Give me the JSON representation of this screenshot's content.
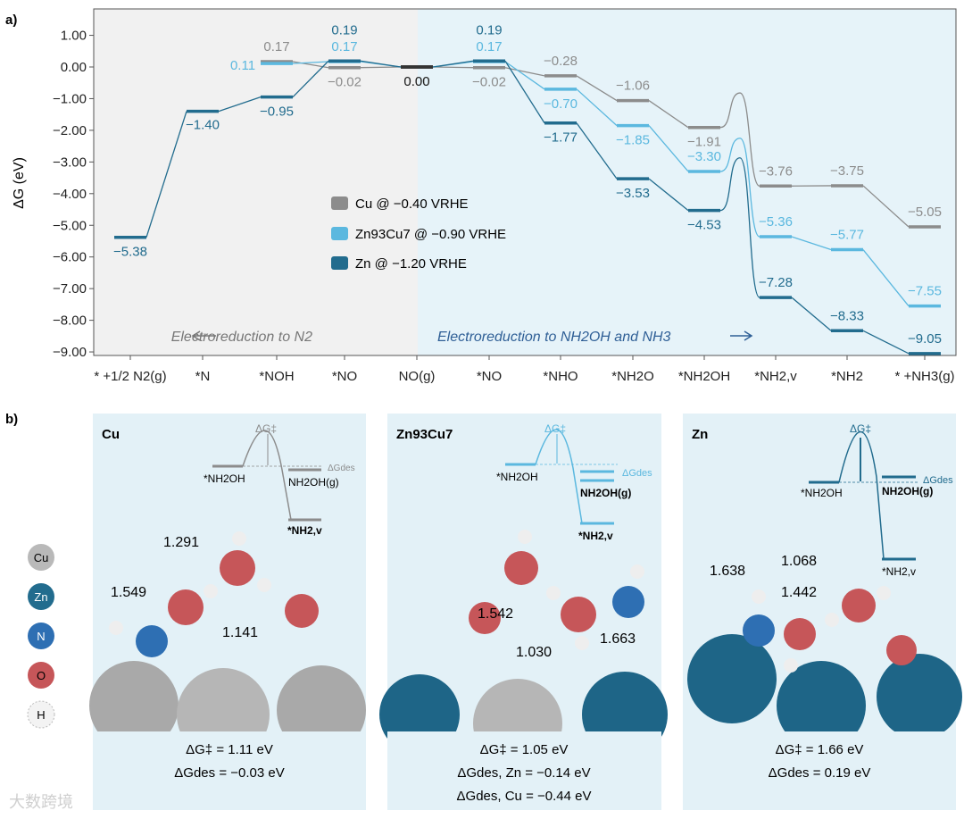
{
  "chart_data": {
    "type": "line",
    "panel_label": "a)",
    "ylabel": "ΔG (eV)",
    "ylim": [
      -9.2,
      1.55
    ],
    "yticks": [
      "1.00",
      "0.00",
      "-1.00",
      "-2.00",
      "-3.00",
      "-4.00",
      "-5.00",
      "-6.00",
      "-7.00",
      "-8.00",
      "-9.00"
    ],
    "ytick_values": [
      1,
      0,
      -1,
      -2,
      -3,
      -4,
      -5,
      -6,
      -7,
      -8,
      -9
    ],
    "categories": [
      "* +1/2 N2(g)",
      "*N",
      "*NOH",
      "*NO",
      "NO(g)",
      "*NO",
      "*NHO",
      "*NH2O",
      "*NH2OH",
      "*NH2,v",
      "*NH2",
      "* +NH3(g)"
    ],
    "region_left_label": "Electroreduction to N2",
    "region_right_label": "Electroreduction to NH2OH and NH3",
    "legend": [
      {
        "name": "Cu @ −0.40 VRHE",
        "color": "#8c8c8c"
      },
      {
        "name": "Zn93Cu7 @ −0.90 VRHE",
        "color": "#5bb8df"
      },
      {
        "name": "Zn @ −1.20 VRHE",
        "color": "#226c8e"
      }
    ],
    "series": [
      {
        "name": "Cu",
        "color": "#8c8c8c",
        "values": [
          null,
          null,
          0.17,
          -0.02,
          0.0,
          -0.02,
          -0.28,
          -1.06,
          -1.91,
          -3.76,
          -3.75,
          -5.05
        ],
        "labels": [
          "",
          "",
          "0.17",
          "−0.02",
          "0.00",
          "−0.02",
          "−0.28",
          "−1.06",
          "−1.91",
          "−3.76",
          "−3.75",
          "−5.05"
        ],
        "ts_peak": -0.82
      },
      {
        "name": "Zn93Cu7",
        "color": "#5bb8df",
        "values": [
          null,
          null,
          0.11,
          0.17,
          0.0,
          0.17,
          -0.7,
          -1.85,
          -3.3,
          -5.36,
          -5.77,
          -7.55
        ],
        "labels": [
          "",
          "",
          "0.11",
          "0.17",
          "",
          "0.17",
          "−0.70",
          "−1.85",
          "−3.30",
          "−5.36",
          "−5.77",
          "−7.55"
        ],
        "ts_peak": -2.25
      },
      {
        "name": "Zn",
        "color": "#226c8e",
        "values": [
          -5.38,
          -1.4,
          -0.95,
          0.19,
          0.0,
          0.19,
          -1.77,
          -3.53,
          -4.53,
          -7.28,
          -8.33,
          -9.05
        ],
        "labels": [
          "−5.38",
          "−1.40",
          "−0.95",
          "0.19",
          "",
          "0.19",
          "−1.77",
          "−3.53",
          "−4.53",
          "−7.28",
          "−8.33",
          "−9.05"
        ],
        "ts_peak": -2.87
      }
    ],
    "panel_b": {
      "label": "b)",
      "atom_legend": [
        "Cu",
        "Zn",
        "N",
        "O",
        "H"
      ],
      "panels": [
        {
          "title": "Cu",
          "delta_g_barrier": "ΔG‡ = 1.11 eV",
          "delta_g_des": [
            "ΔGdes = −0.03 eV"
          ],
          "bond_lengths": [
            "1.291",
            "1.549",
            "1.141"
          ],
          "inset_labels": [
            "ΔG‡",
            "ΔGdes",
            "*NH2OH",
            "NH2OH(g)",
            "*NH2,v"
          ]
        },
        {
          "title": "Zn93Cu7",
          "delta_g_barrier": "ΔG‡ = 1.05 eV",
          "delta_g_des": [
            "ΔGdes, Zn = −0.14 eV",
            "ΔGdes, Cu = −0.44 eV"
          ],
          "bond_lengths": [
            "1.542",
            "1.030",
            "1.663"
          ],
          "inset_labels": [
            "ΔG‡",
            "ΔGdes",
            "*NH2OH",
            "NH2OH(g)",
            "*NH2,v"
          ]
        },
        {
          "title": "Zn",
          "delta_g_barrier": "ΔG‡ = 1.66 eV",
          "delta_g_des": [
            "ΔGdes = 0.19 eV"
          ],
          "bond_lengths": [
            "1.638",
            "1.442",
            "1.068"
          ],
          "inset_labels": [
            "ΔG‡",
            "ΔGdes",
            "*NH2OH",
            "NH2OH(g)",
            "*NH2,v"
          ]
        }
      ]
    }
  },
  "watermark": "大数跨境"
}
